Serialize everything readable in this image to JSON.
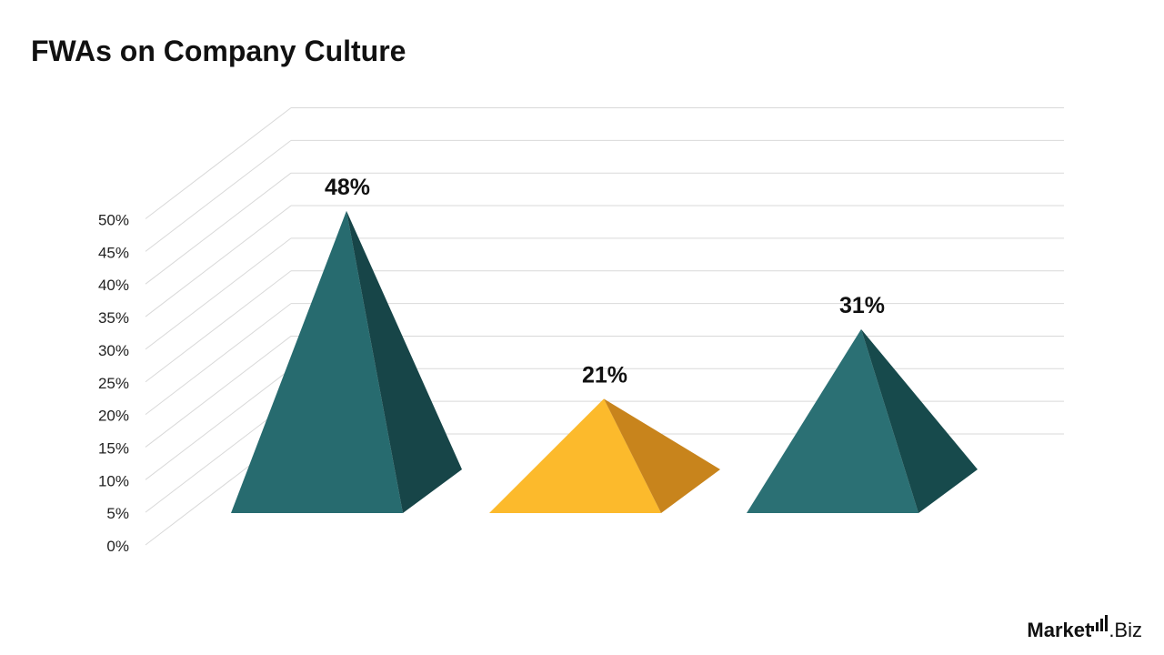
{
  "chart_data": {
    "type": "bar",
    "style": "3d-pyramid",
    "title": "FWAs on Company Culture",
    "xlabel": "",
    "ylabel": "",
    "ylim": [
      0,
      50
    ],
    "yticks": [
      "0%",
      "5%",
      "10%",
      "15%",
      "20%",
      "25%",
      "30%",
      "35%",
      "40%",
      "45%",
      "50%"
    ],
    "grid": true,
    "legend": "none",
    "values": [
      48,
      21,
      31
    ],
    "labels": [
      "48%",
      "21%",
      "31%"
    ],
    "colors": [
      {
        "front": "#276b6f",
        "side": "#174548"
      },
      {
        "front": "#fcba2c",
        "side": "#c8841c"
      },
      {
        "front": "#2b7074",
        "side": "#174a4c"
      }
    ]
  },
  "brand": {
    "part1": "Market",
    "part2": ".Biz"
  }
}
